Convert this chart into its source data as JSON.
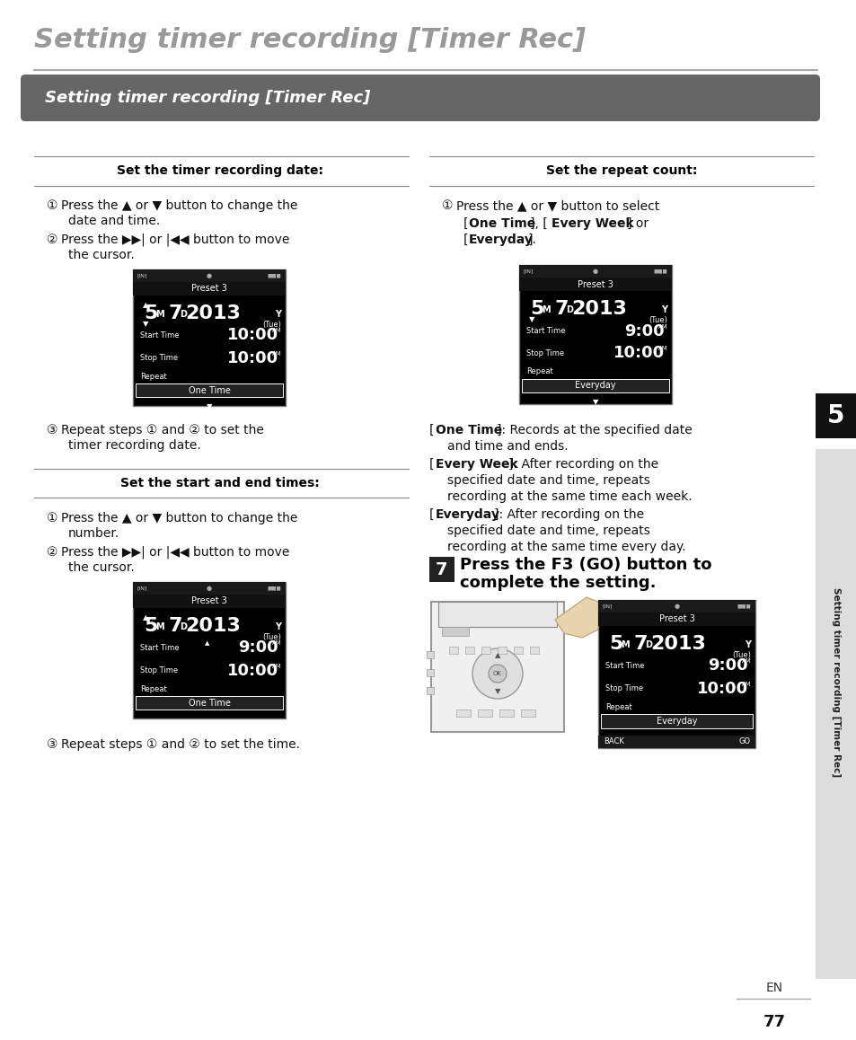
{
  "page_title": "Setting timer recording [Timer Rec]",
  "section_header": "Setting timer recording [Timer Rec]",
  "bg_color": "#ffffff",
  "title_color": "#999999",
  "header_bg_color": "#666666",
  "header_text_color": "#ffffff",
  "body_text_color": "#111111",
  "bold_text_color": "#000000",
  "page_number": "77",
  "en_label": "EN",
  "section_label": "5",
  "sidebar_text": "Setting timer recording [Timer Rec]",
  "col1_header": "Set the timer recording date:",
  "col2_header": "Set the repeat count:",
  "col3_header": "Set the start and end times:",
  "step7_text1": "Press the F3 (GO) button to",
  "step7_text2": "complete the setting."
}
